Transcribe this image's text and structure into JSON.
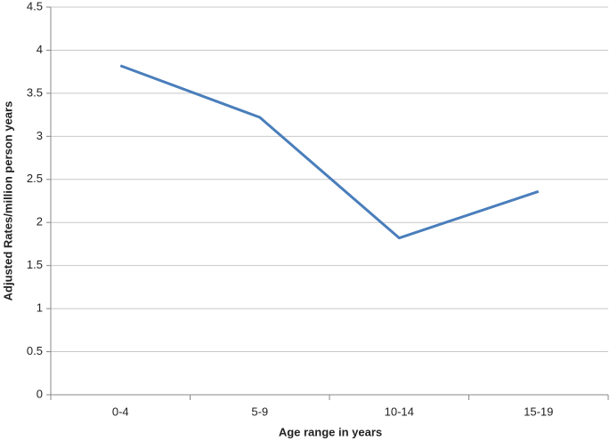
{
  "chart_data": {
    "type": "line",
    "x_label": "Age range in years",
    "y_label": "Adjusted Rates/million person years",
    "categories": [
      "0-4",
      "5-9",
      "10-14",
      "15-19"
    ],
    "values": [
      3.82,
      3.22,
      1.82,
      2.36
    ],
    "color": "#4a7ebb",
    "ylim": [
      0,
      4.5
    ],
    "yticks": [
      0,
      0.5,
      1,
      1.5,
      2,
      2.5,
      3,
      3.5,
      4,
      4.5
    ],
    "grid": true
  }
}
